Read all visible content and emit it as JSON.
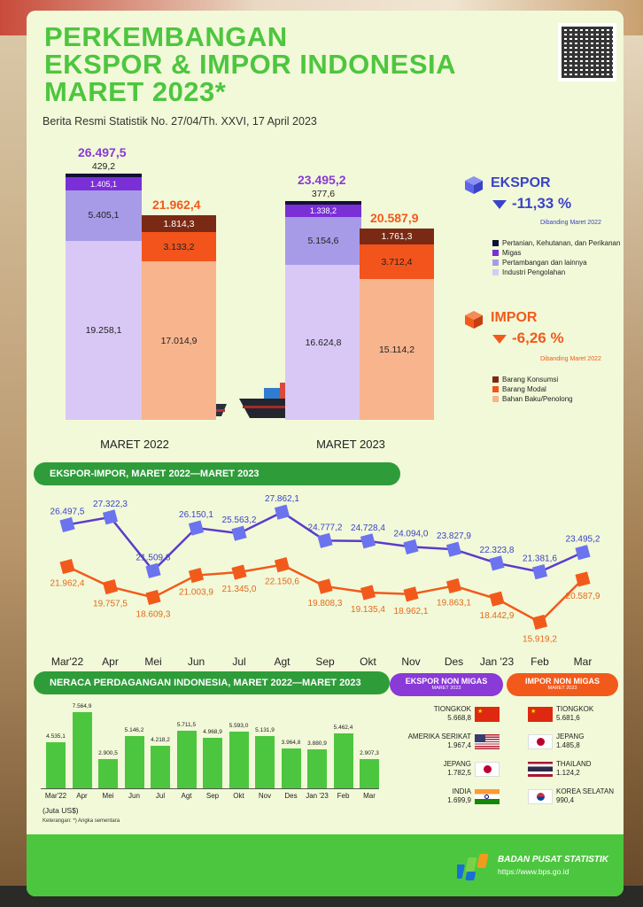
{
  "header": {
    "title_line1": "PERKEMBANGAN",
    "title_line2": "EKSPOR & IMPOR INDONESIA",
    "title_line3": "MARET 2023*",
    "subtitle": "Berita Resmi Statistik No. 27/04/Th. XXVI, 17 April 2023"
  },
  "colors": {
    "green": "#4dc63f",
    "dark_green": "#2f9c3a",
    "ekspor_blue": "#5d66e8",
    "impor_orange": "#f25a1c",
    "purple": "#8a3ad6",
    "ekspor_segments": [
      "#d9c8f5",
      "#a79be8",
      "#7b2fd6",
      "#111133"
    ],
    "impor_segments": [
      "#f8b48c",
      "#f2541c",
      "#7a2a14"
    ]
  },
  "chart_data": [
    {
      "type": "bar",
      "stacked": true,
      "categories": [
        "MARET 2022",
        "MARET 2023"
      ],
      "ekspor": {
        "total_labels": [
          "26.497,5",
          "23.495,2"
        ],
        "series": [
          {
            "name": "Industri Pengolahan",
            "values": [
              19258.1,
              16624.8
            ],
            "labels": [
              "19.258,1",
              "16.624,8"
            ]
          },
          {
            "name": "Pertambangan dan lainnya",
            "values": [
              5405.1,
              5154.6
            ],
            "labels": [
              "5.405,1",
              "5.154,6"
            ]
          },
          {
            "name": "Migas",
            "values": [
              1405.1,
              1338.2
            ],
            "labels": [
              "1.405,1",
              "1.338,2"
            ]
          },
          {
            "name": "Pertanian, Kehutanan, dan Perikanan",
            "values": [
              429.2,
              377.6
            ],
            "labels": [
              "429,2",
              "377,6"
            ]
          }
        ]
      },
      "impor": {
        "total_labels": [
          "21.962,4",
          "20.587,9"
        ],
        "series": [
          {
            "name": "Bahan Baku/Penolong",
            "values": [
              17014.9,
              15114.2
            ],
            "labels": [
              "17.014,9",
              "15.114,2"
            ]
          },
          {
            "name": "Barang Modal",
            "values": [
              3133.2,
              3712.4
            ],
            "labels": [
              "3.133,2",
              "3.712,4"
            ]
          },
          {
            "name": "Barang Konsumsi",
            "values": [
              1814.3,
              1761.3
            ],
            "labels": [
              "1.814,3",
              "1.761,3"
            ]
          }
        ]
      }
    },
    {
      "type": "line",
      "title": "EKSPOR-IMPOR, MARET 2022—MARET 2023",
      "categories": [
        "Mar'22",
        "Apr",
        "Mei",
        "Jun",
        "Jul",
        "Agt",
        "Sep",
        "Okt",
        "Nov",
        "Des",
        "Jan '23",
        "Feb",
        "Mar"
      ],
      "series": [
        {
          "name": "Ekspor",
          "values": [
            26497.5,
            27322.3,
            21509.8,
            26150.1,
            25563.2,
            27862.1,
            24777.2,
            24728.4,
            24094.0,
            23827.9,
            22323.8,
            21381.6,
            23495.2
          ],
          "labels": [
            "26.497,5",
            "27.322,3",
            "21.509,8",
            "26.150,1",
            "25.563,2",
            "27.862,1",
            "24.777,2",
            "24.728,4",
            "24.094,0",
            "23.827,9",
            "22.323,8",
            "21.381,6",
            "23.495,2"
          ]
        },
        {
          "name": "Impor",
          "values": [
            21962.4,
            19757.5,
            18609.3,
            21003.9,
            21345.0,
            22150.6,
            19808.3,
            19135.4,
            18962.1,
            19863.1,
            18442.9,
            15919.2,
            20587.9
          ],
          "labels": [
            "21.962,4",
            "19.757,5",
            "18.609,3",
            "21.003,9",
            "21.345,0",
            "22.150,6",
            "19.808,3",
            "19.135,4",
            "18.962,1",
            "19.863,1",
            "18.442,9",
            "15.919,2",
            "20.587,9"
          ]
        }
      ]
    },
    {
      "type": "bar",
      "title": "NERACA PERDAGANGAN INDONESIA, MARET 2022—MARET 2023",
      "categories": [
        "Mar'22",
        "Apr",
        "Mei",
        "Jun",
        "Jul",
        "Agt",
        "Sep",
        "Okt",
        "Nov",
        "Des",
        "Jan '23",
        "Feb",
        "Mar"
      ],
      "values": [
        4535.1,
        7564.9,
        2900.5,
        5146.2,
        4218.2,
        5711.5,
        4968.9,
        5593.0,
        5131.9,
        3964.8,
        3880.9,
        5462.4,
        2907.3
      ],
      "labels": [
        "4.535,1",
        "7.564,9",
        "2.900,5",
        "5.146,2",
        "4.218,2",
        "5.711,5",
        "4.968,9",
        "5.593,0",
        "5.131,9",
        "3.964,8",
        "3.880,9",
        "5.462,4",
        "2.907,3"
      ],
      "unit": "(Juta US$)"
    }
  ],
  "summary": {
    "ekspor_label": "EKSPOR",
    "ekspor_change": "-11,33 %",
    "ekspor_note": "Dibanding Maret 2022",
    "impor_label": "IMPOR",
    "impor_change": "-6,26 %",
    "impor_note": "Dibanding Maret 2022",
    "ekspor_legend": [
      "Pertanian, Kehutanan, dan Perikanan",
      "Migas",
      "Pertambangan dan lainnya",
      "Industri Pengolahan"
    ],
    "impor_legend": [
      "Barang Konsumsi",
      "Barang Modal",
      "Bahan Baku/Penolong"
    ]
  },
  "partners": {
    "ekspor_title": "EKSPOR NON MIGAS",
    "ekspor_sub": "MARET 2023",
    "impor_title": "IMPOR NON MIGAS",
    "impor_sub": "MARET 2023",
    "ekspor": [
      {
        "country": "TIONGKOK",
        "value": "5.668,8",
        "flag": "china"
      },
      {
        "country": "AMERIKA SERIKAT",
        "value": "1.967,4",
        "flag": "usa"
      },
      {
        "country": "JEPANG",
        "value": "1.782,5",
        "flag": "japan"
      },
      {
        "country": "INDIA",
        "value": "1.699,9",
        "flag": "india"
      }
    ],
    "impor": [
      {
        "country": "TIONGKOK",
        "value": "5.681,6",
        "flag": "china"
      },
      {
        "country": "JEPANG",
        "value": "1.485,8",
        "flag": "japan"
      },
      {
        "country": "THAILAND",
        "value": "1.124,2",
        "flag": "thailand"
      },
      {
        "country": "KOREA SELATAN",
        "value": "990,4",
        "flag": "korea"
      }
    ]
  },
  "notes": {
    "unit": "(Juta US$)",
    "footnote": "Keterangan: *) Angka sementara"
  },
  "footer": {
    "org": "BADAN PUSAT STATISTIK",
    "url": "https://www.bps.go.id"
  }
}
